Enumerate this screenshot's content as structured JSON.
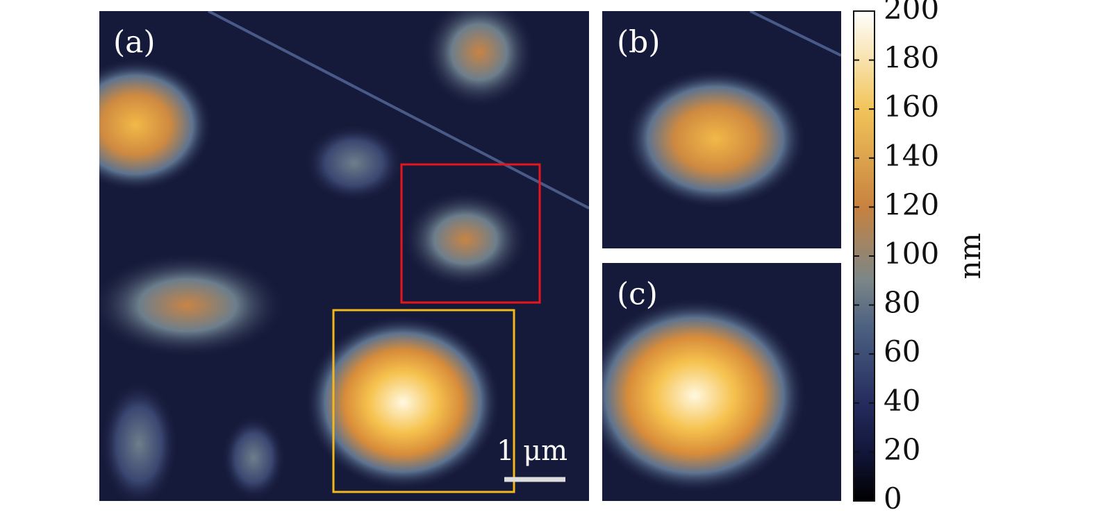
{
  "panels": [
    {
      "label": "(a)"
    },
    {
      "label": "(b)"
    },
    {
      "label": "(c)"
    }
  ],
  "scale_bar": "1 μm",
  "colorbar": {
    "label": "nm",
    "lim": [
      0,
      200
    ],
    "ticks": [
      0,
      20,
      40,
      60,
      80,
      100,
      120,
      140,
      160,
      180,
      200
    ]
  }
}
